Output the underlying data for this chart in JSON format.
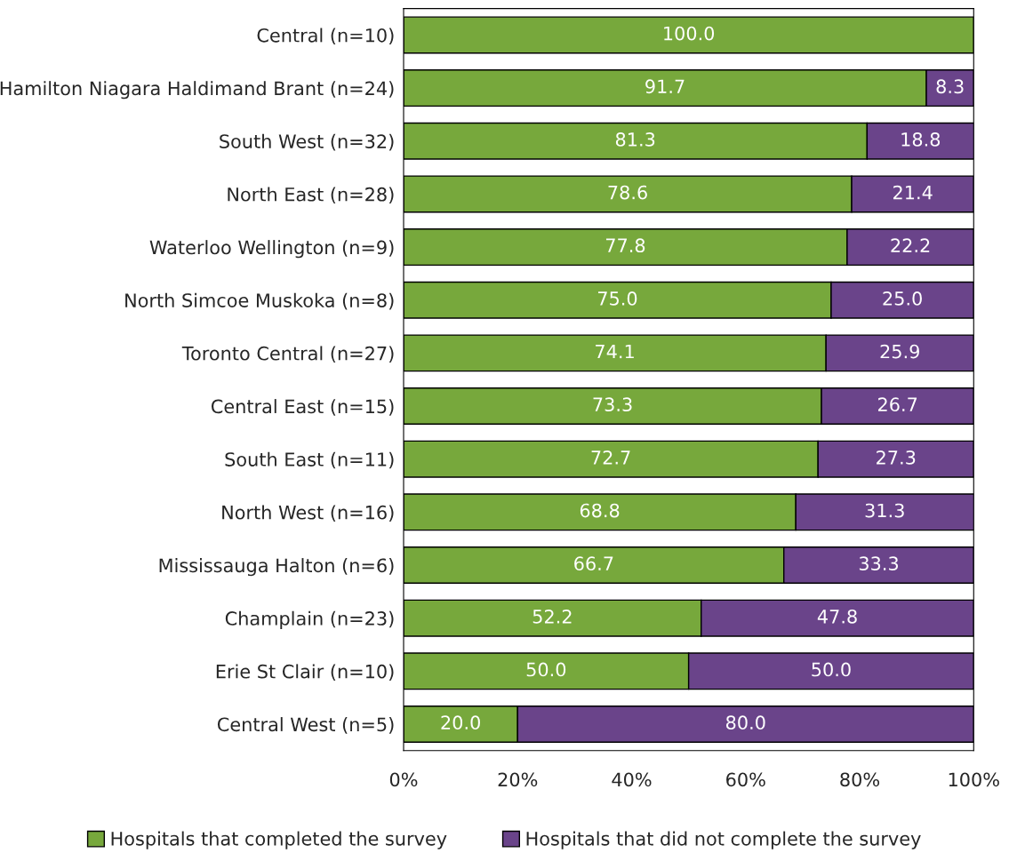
{
  "chart_data": {
    "type": "bar",
    "orientation": "horizontal",
    "stacked": true,
    "categories": [
      "Central (n=10)",
      "Hamilton Niagara Haldimand Brant (n=24)",
      "South West (n=32)",
      "North East (n=28)",
      "Waterloo Wellington (n=9)",
      "North Simcoe Muskoka (n=8)",
      "Toronto Central (n=27)",
      "Central East (n=15)",
      "South East (n=11)",
      "North West (n=16)",
      "Mississauga Halton (n=6)",
      "Champlain (n=23)",
      "Erie St Clair (n=10)",
      "Central West (n=5)"
    ],
    "series": [
      {
        "name": "Hospitals that completed the survey",
        "color": "#77a83c",
        "values": [
          100.0,
          91.7,
          81.3,
          78.6,
          77.8,
          75.0,
          74.1,
          73.3,
          72.7,
          68.8,
          66.7,
          52.2,
          50.0,
          20.0
        ],
        "value_labels": [
          "100.0",
          "91.7",
          "81.3",
          "78.6",
          "77.8",
          "75.0",
          "74.1",
          "73.3",
          "72.7",
          "68.8",
          "66.7",
          "52.2",
          "50.0",
          "20.0"
        ]
      },
      {
        "name": "Hospitals that did not complete the survey",
        "color": "#6a448a",
        "values": [
          null,
          8.3,
          18.8,
          21.4,
          22.2,
          25.0,
          25.9,
          26.7,
          27.3,
          31.3,
          33.3,
          47.8,
          50.0,
          80.0
        ],
        "value_labels": [
          null,
          "8.3",
          "18.8",
          "21.4",
          "22.2",
          "25.0",
          "25.9",
          "26.7",
          "27.3",
          "31.3",
          "33.3",
          "47.8",
          "50.0",
          "80.0"
        ]
      }
    ],
    "xlim": [
      0,
      100
    ],
    "xticks": [
      {
        "value": 0,
        "label": "0%"
      },
      {
        "value": 20,
        "label": "20%"
      },
      {
        "value": 40,
        "label": "40%"
      },
      {
        "value": 60,
        "label": "60%"
      },
      {
        "value": 80,
        "label": "80%"
      },
      {
        "value": 100,
        "label": "100%"
      }
    ],
    "grid": false,
    "legend": "bottom"
  }
}
